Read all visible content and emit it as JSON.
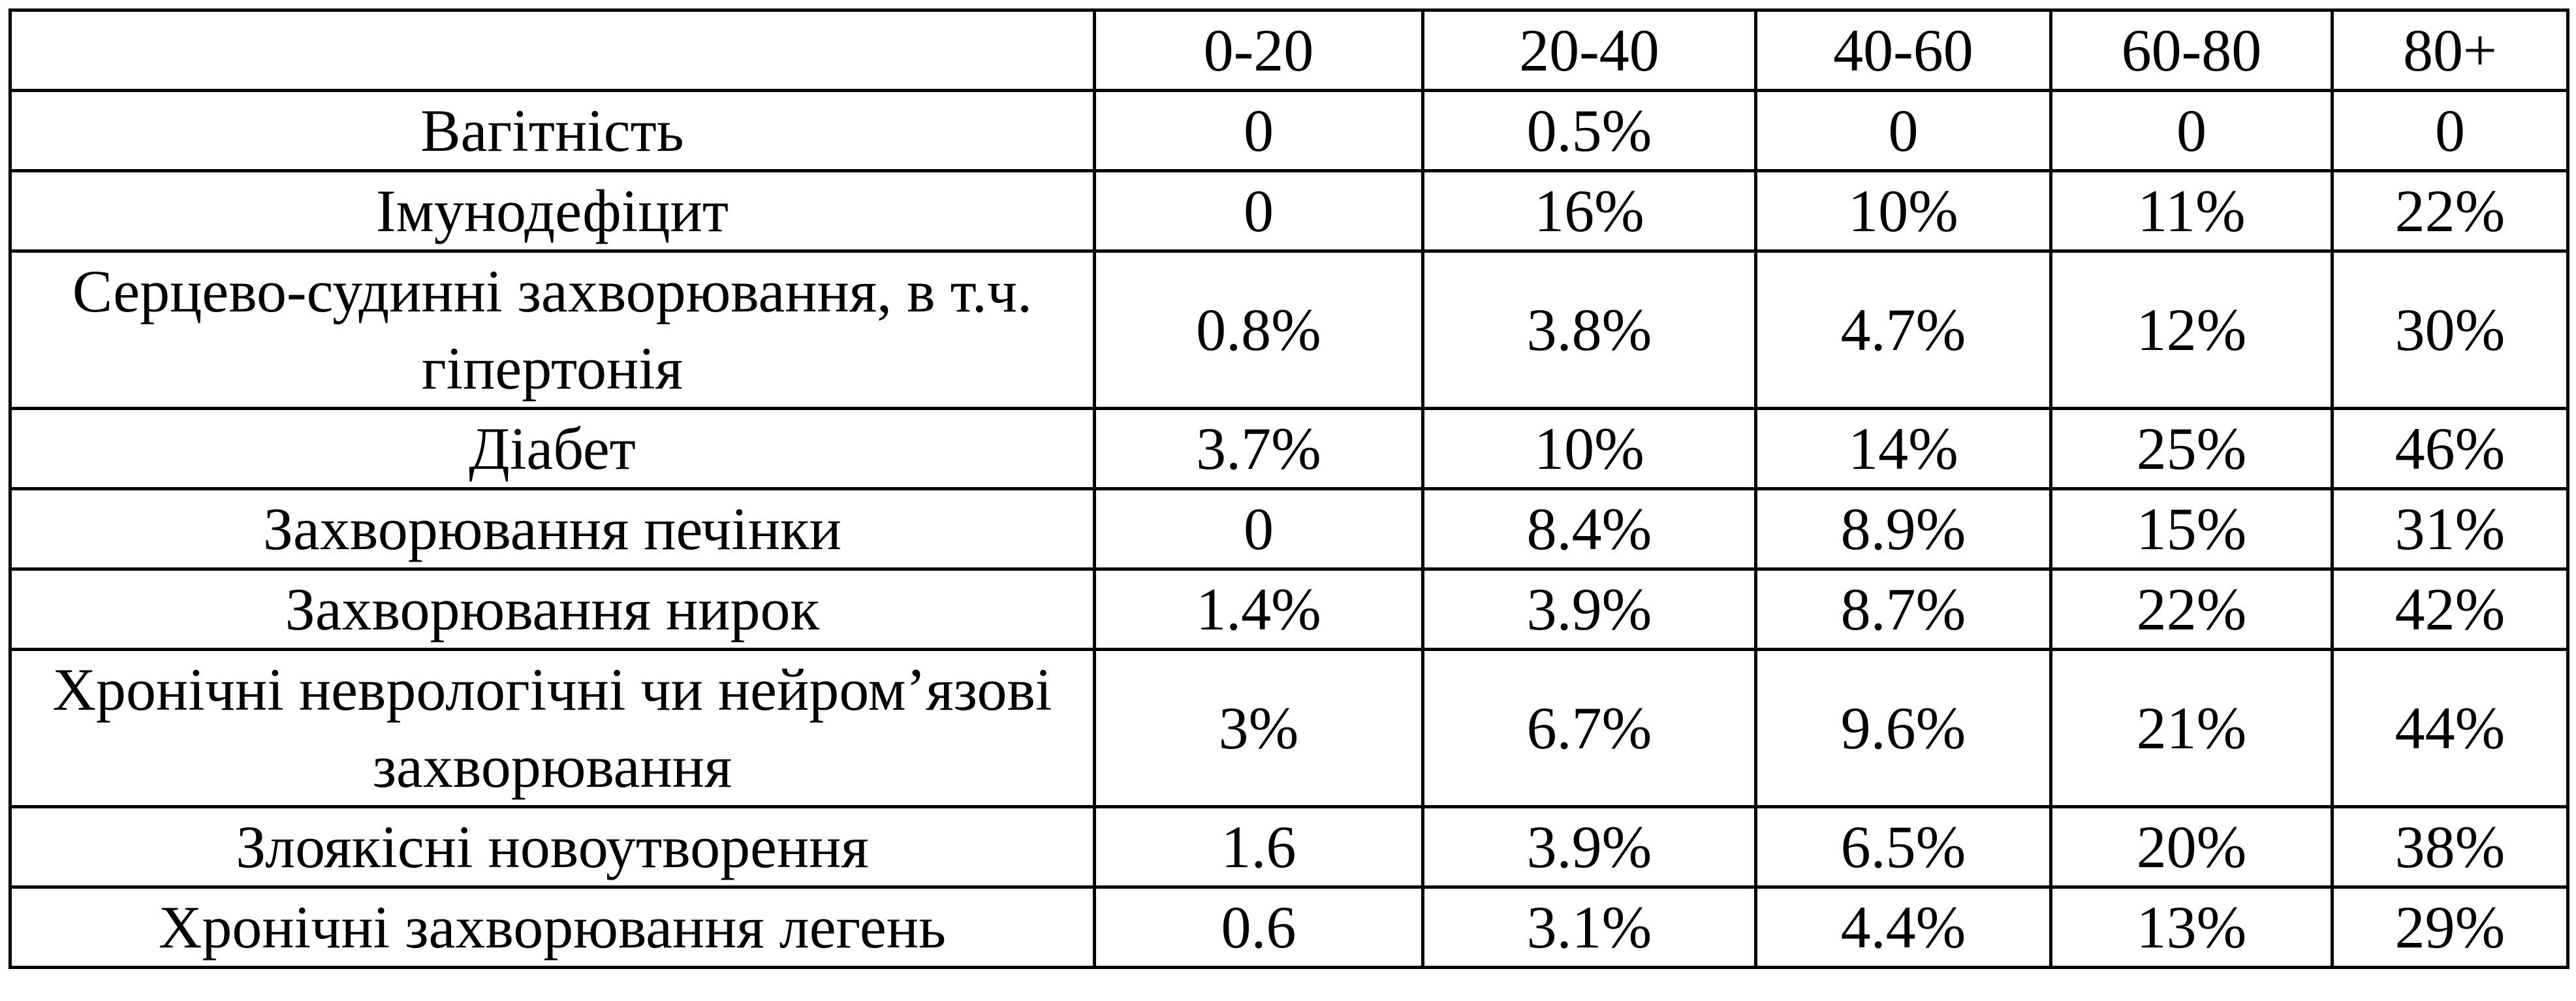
{
  "table": {
    "columns": [
      "0-20",
      "20-40",
      "40-60",
      "60-80",
      "80+"
    ],
    "rows": [
      {
        "label": "Вагітність",
        "values": [
          "0",
          "0.5%",
          "0",
          "0",
          "0"
        ]
      },
      {
        "label": "Імунодефіцит",
        "values": [
          "0",
          "16%",
          "10%",
          "11%",
          "22%"
        ]
      },
      {
        "label": "Серцево-судинні захворювання, в т.ч. гіпертонія",
        "values": [
          "0.8%",
          "3.8%",
          "4.7%",
          "12%",
          "30%"
        ]
      },
      {
        "label": "Діабет",
        "values": [
          "3.7%",
          "10%",
          "14%",
          "25%",
          "46%"
        ]
      },
      {
        "label": "Захворювання печінки",
        "values": [
          "0",
          "8.4%",
          "8.9%",
          "15%",
          "31%"
        ]
      },
      {
        "label": "Захворювання нирок",
        "values": [
          "1.4%",
          "3.9%",
          "8.7%",
          "22%",
          "42%"
        ]
      },
      {
        "label": "Хронічні неврологічні чи нейром’язові захворювання",
        "values": [
          "3%",
          "6.7%",
          "9.6%",
          "21%",
          "44%"
        ]
      },
      {
        "label": "Злоякісні новоутворення",
        "values": [
          "1.6",
          "3.9%",
          "6.5%",
          "20%",
          "38%"
        ]
      },
      {
        "label": "Хронічні захворювання легень",
        "values": [
          "0.6",
          "3.1%",
          "4.4%",
          "13%",
          "29%"
        ]
      }
    ]
  }
}
